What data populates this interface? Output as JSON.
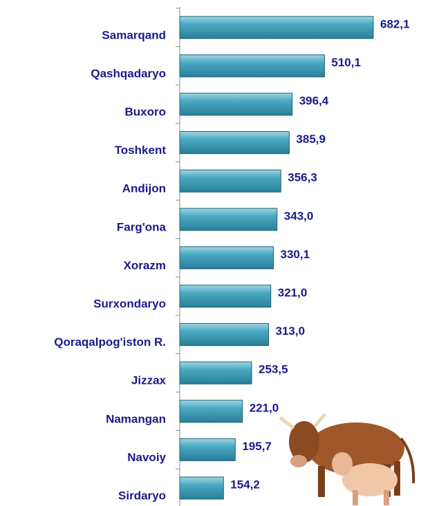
{
  "chart_data": {
    "type": "bar",
    "orientation": "horizontal",
    "categories": [
      "Samarqand",
      "Qashqadaryo",
      "Buxoro",
      "Toshkent",
      "Andijon",
      "Farg'ona",
      "Xorazm",
      "Surxondaryo",
      "Qoraqalpog'iston R.",
      "Jizzax",
      "Namangan",
      "Navoiy",
      "Sirdaryo"
    ],
    "values": [
      682.1,
      510.1,
      396.4,
      385.9,
      356.3,
      343.0,
      330.1,
      321.0,
      313.0,
      253.5,
      221.0,
      195.7,
      154.2
    ],
    "value_labels": [
      "682,1",
      "510,1",
      "396,4",
      "385,9",
      "356,3",
      "343,0",
      "330,1",
      "321,0",
      "313,0",
      "253,5",
      "221,0",
      "195,7",
      "154,2"
    ],
    "color": "#3b9cb6"
  }
}
